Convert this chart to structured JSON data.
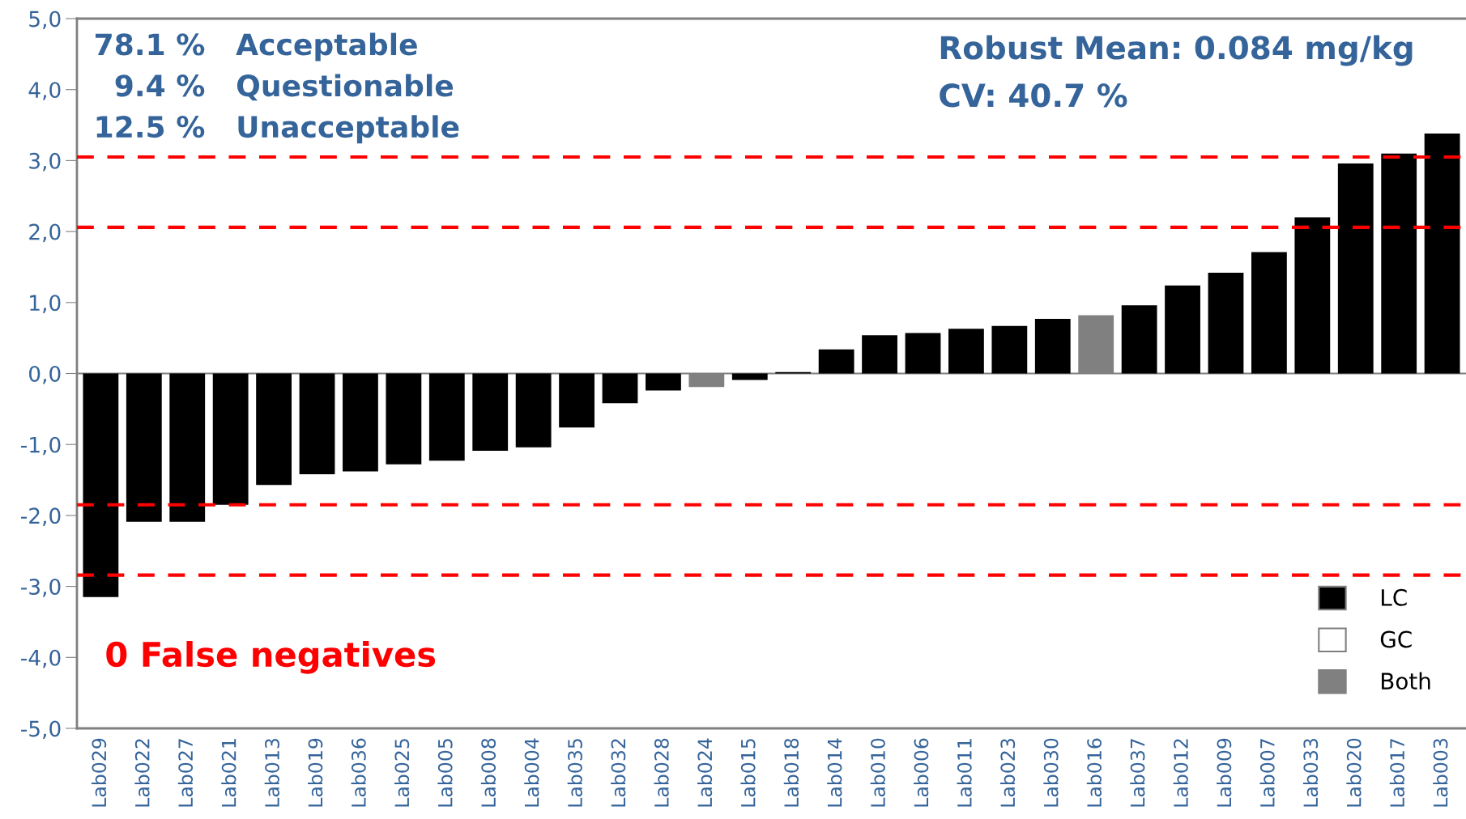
{
  "chart_data": {
    "type": "bar",
    "categories": [
      "Lab029",
      "Lab022",
      "Lab027",
      "Lab021",
      "Lab013",
      "Lab019",
      "Lab036",
      "Lab025",
      "Lab005",
      "Lab008",
      "Lab004",
      "Lab035",
      "Lab032",
      "Lab028",
      "Lab024",
      "Lab015",
      "Lab018",
      "Lab014",
      "Lab010",
      "Lab006",
      "Lab011",
      "Lab023",
      "Lab030",
      "Lab016",
      "Lab037",
      "Lab012",
      "Lab009",
      "Lab007",
      "Lab033",
      "Lab020",
      "Lab017",
      "Lab003"
    ],
    "series": [
      {
        "name": "LC",
        "color": "#000000",
        "values": [
          -3.15,
          -2.09,
          -2.09,
          -1.85,
          -1.57,
          -1.42,
          -1.38,
          -1.28,
          -1.23,
          -1.09,
          -1.04,
          -0.76,
          -0.42,
          -0.24,
          null,
          -0.09,
          0.02,
          0.34,
          0.54,
          0.57,
          0.63,
          0.67,
          0.77,
          null,
          0.96,
          1.24,
          1.42,
          1.71,
          2.2,
          2.96,
          3.1,
          3.38
        ]
      },
      {
        "name": "GC",
        "color": "#ffffff",
        "values": [
          null,
          null,
          null,
          null,
          null,
          null,
          null,
          null,
          null,
          null,
          null,
          null,
          null,
          null,
          null,
          null,
          null,
          null,
          null,
          null,
          null,
          null,
          null,
          null,
          null,
          null,
          null,
          null,
          null,
          null,
          null,
          null
        ]
      },
      {
        "name": "Both",
        "color": "#808080",
        "values": [
          null,
          null,
          null,
          null,
          null,
          null,
          null,
          null,
          null,
          null,
          null,
          null,
          null,
          null,
          -0.19,
          null,
          null,
          null,
          null,
          null,
          null,
          null,
          null,
          0.82,
          null,
          null,
          null,
          null,
          null,
          null,
          null,
          null
        ]
      }
    ],
    "ylim": [
      -5,
      5
    ],
    "yticks": [
      {
        "value": 5,
        "label": "5,0"
      },
      {
        "value": 4,
        "label": "4,0"
      },
      {
        "value": 3,
        "label": "3,0"
      },
      {
        "value": 2,
        "label": "2,0"
      },
      {
        "value": 1,
        "label": "1,0"
      },
      {
        "value": 0,
        "label": "0,0"
      },
      {
        "value": -1,
        "label": "-1,0"
      },
      {
        "value": -2,
        "label": "-2,0"
      },
      {
        "value": -3,
        "label": "-3,0"
      },
      {
        "value": -4,
        "label": "-4,0"
      },
      {
        "value": -5,
        "label": "-5,0"
      }
    ],
    "ref_lines": [
      {
        "axis": "y",
        "value": 3.05,
        "color": "#ff0000",
        "line_style": "dashed"
      },
      {
        "axis": "y",
        "value": 2.06,
        "color": "#ff0000",
        "line_style": "dashed"
      },
      {
        "axis": "y",
        "value": -1.85,
        "color": "#ff0000",
        "line_style": "dashed"
      },
      {
        "axis": "y",
        "value": -2.84,
        "color": "#ff0000",
        "line_style": "dashed"
      }
    ],
    "annotations": [
      "78.1 %   Acceptable",
      "  9.4 %   Questionable",
      "12.5 %   Unacceptable",
      "Robust Mean: 0.084 mg/kg",
      "CV: 40.7 %",
      "0 False negatives"
    ],
    "legend": "bottom right"
  }
}
